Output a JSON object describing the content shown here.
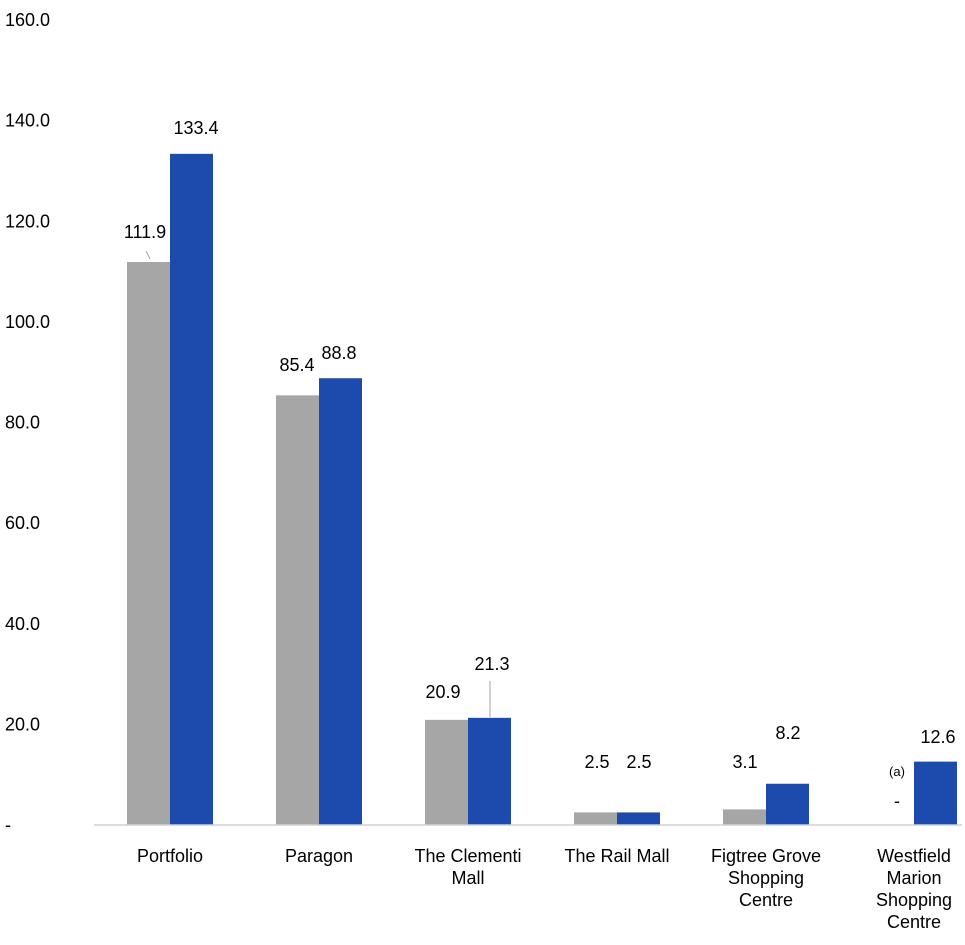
{
  "chart_data": {
    "type": "bar",
    "categories": [
      [
        "Portfolio"
      ],
      [
        "Paragon"
      ],
      [
        "The Clementi",
        "Mall"
      ],
      [
        "The Rail Mall"
      ],
      [
        "Figtree Grove",
        "Shopping",
        "Centre"
      ],
      [
        "Westfield",
        "Marion",
        "Shopping",
        "Centre"
      ]
    ],
    "series": [
      {
        "color": "#a6a6a6",
        "values": [
          111.9,
          85.4,
          20.9,
          2.5,
          3.1,
          0
        ],
        "labels": [
          "111.9",
          "85.4",
          "20.9",
          "2.5",
          "3.1",
          "-"
        ]
      },
      {
        "color": "#1c4aad",
        "values": [
          133.4,
          88.8,
          21.3,
          2.5,
          8.2,
          12.6
        ],
        "labels": [
          "133.4",
          "88.8",
          "21.3",
          "2.5",
          "8.2",
          "12.6"
        ]
      }
    ],
    "annotations": [
      {
        "category_index": 5,
        "text": "(a)"
      }
    ],
    "yticks": [
      "-",
      "20.0",
      "40.0",
      "60.0",
      "80.0",
      "100.0",
      "120.0",
      "140.0",
      "160.0"
    ],
    "ylim": [
      0,
      160
    ],
    "grid": false,
    "legend": "none"
  }
}
